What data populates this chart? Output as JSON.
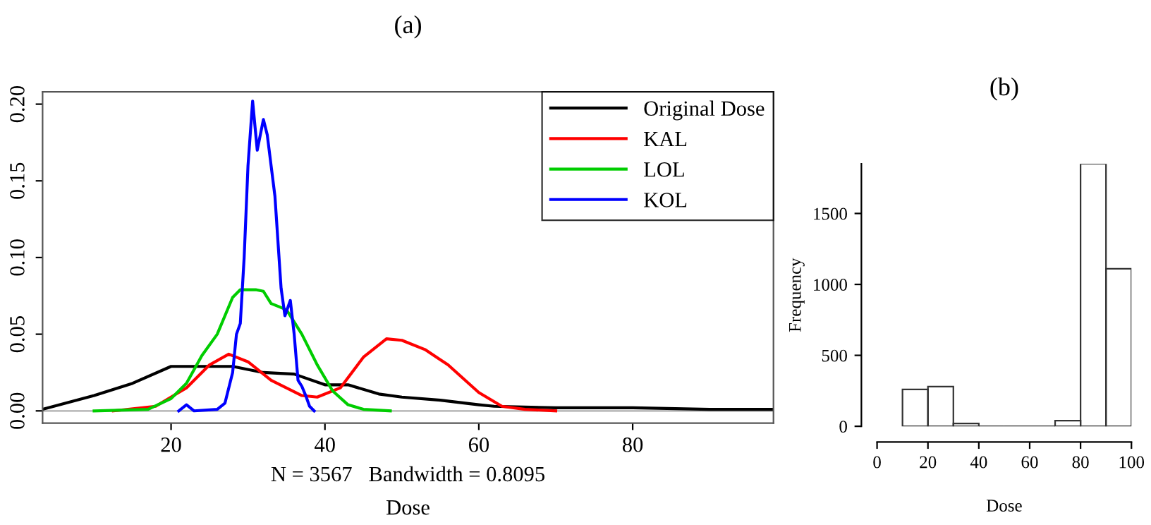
{
  "chart_data": [
    {
      "type": "line",
      "title": "(a)",
      "xlabel": "Dose",
      "annotations": [
        "N = 3567   Bandwidth = 0.8095"
      ],
      "xlim": [
        3.3,
        98.3
      ],
      "ylim": [
        -0.008,
        0.208
      ],
      "xticks": [
        20,
        40,
        60,
        80
      ],
      "yticks": [
        {
          "value": 0,
          "label": "0.00"
        },
        {
          "value": 0.05,
          "label": "0.05"
        },
        {
          "value": 0.1,
          "label": "0.10"
        },
        {
          "value": 0.15,
          "label": "0.15"
        },
        {
          "value": 0.2,
          "label": "0.20"
        }
      ],
      "legend": "top right",
      "grid": false,
      "marker": "none",
      "line_style": "solid",
      "ref_lines": [
        {
          "axis": "y",
          "value": 0,
          "label": null,
          "color": "#bebebe"
        }
      ],
      "series": [
        {
          "name": "Original Dose",
          "color": "#000000",
          "x": [
            3.3,
            10,
            15,
            20,
            25,
            28,
            32,
            36,
            40,
            43,
            47,
            50,
            55,
            60,
            62,
            70,
            80,
            90,
            98.3
          ],
          "values": [
            0.001,
            0.01,
            0.018,
            0.029,
            0.029,
            0.029,
            0.025,
            0.024,
            0.017,
            0.017,
            0.011,
            0.009,
            0.007,
            0.004,
            0.003,
            0.002,
            0.002,
            0.001,
            0.001
          ]
        },
        {
          "name": "KAL",
          "color": "#ff0000",
          "x": [
            12.5,
            18,
            22,
            25,
            27.5,
            30,
            33,
            37,
            39,
            42,
            45,
            48,
            50,
            53,
            56,
            60,
            63,
            66,
            70
          ],
          "values": [
            0,
            0.003,
            0.015,
            0.03,
            0.037,
            0.032,
            0.02,
            0.01,
            0.009,
            0.015,
            0.035,
            0.047,
            0.046,
            0.04,
            0.03,
            0.012,
            0.003,
            0.001,
            0
          ]
        },
        {
          "name": "LOL",
          "color": "#00cd00",
          "x": [
            10,
            17,
            20,
            22,
            24,
            26,
            28,
            29,
            31,
            32,
            33,
            35,
            37,
            39,
            41,
            43,
            45,
            48.5
          ],
          "values": [
            0,
            0.001,
            0.008,
            0.018,
            0.036,
            0.05,
            0.074,
            0.079,
            0.079,
            0.078,
            0.07,
            0.066,
            0.05,
            0.03,
            0.013,
            0.004,
            0.001,
            0
          ]
        },
        {
          "name": "KOL",
          "color": "#0000ff",
          "x": [
            21,
            22,
            23,
            26,
            27,
            28,
            28.5,
            29,
            29.5,
            30,
            30.6,
            31.2,
            32,
            32.5,
            33.5,
            34.3,
            34.8,
            35.5,
            36,
            36.5,
            37,
            37.5,
            38,
            38.6
          ],
          "values": [
            0,
            0.004,
            0,
            0.001,
            0.005,
            0.025,
            0.05,
            0.057,
            0.1,
            0.16,
            0.202,
            0.17,
            0.19,
            0.18,
            0.14,
            0.08,
            0.062,
            0.072,
            0.05,
            0.02,
            0.016,
            0.01,
            0.003,
            0
          ]
        }
      ]
    },
    {
      "type": "histogram",
      "title": "(b)",
      "xlabel": "Dose",
      "ylabel": "Frequency",
      "grid": false,
      "bins": [
        10,
        20,
        30,
        40,
        50,
        60,
        70,
        80,
        90,
        100
      ],
      "values": [
        260,
        280,
        20,
        0,
        0,
        0,
        40,
        1850,
        1110
      ],
      "xlim": [
        0,
        100
      ],
      "ylim": [
        0,
        1850
      ],
      "xticks": [
        0,
        20,
        40,
        60,
        80,
        100
      ],
      "yticks": [
        0,
        500,
        1000,
        1500
      ],
      "color": "#333333"
    }
  ]
}
